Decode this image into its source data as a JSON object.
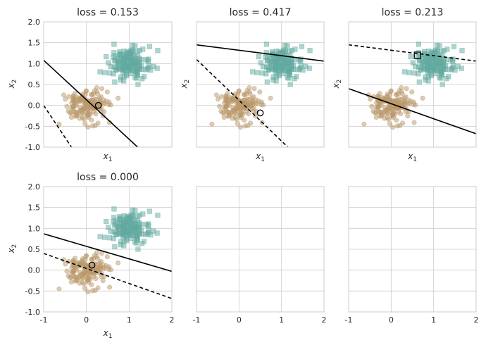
{
  "figure": {
    "layout": "2 rows x 3 columns",
    "colors": {
      "class_0": "#b9986a",
      "class_1": "#62aaa0",
      "boundary": "#000000",
      "grid": "#cccccc"
    }
  },
  "chart_data": [
    {
      "type": "scatter",
      "title": "loss = 0.153",
      "xlabel": "x1",
      "ylabel": "x2",
      "xlim": [
        -1,
        2
      ],
      "ylim": [
        -1,
        2
      ],
      "xticks": [
        "-1",
        "0",
        "1",
        "2"
      ],
      "yticks": [
        "-1.0",
        "-0.5",
        "0.0",
        "0.5",
        "1.0",
        "1.5",
        "2.0"
      ],
      "show_xtick_labels": false,
      "show_ytick_labels": true,
      "grid": true,
      "series": [
        {
          "marker": "circle",
          "color": "#b9986a",
          "cluster_center": [
            0.0,
            0.0
          ],
          "cluster_spread": [
            0.25,
            0.2
          ],
          "count": 150
        },
        {
          "marker": "square",
          "color": "#62aaa0",
          "cluster_center": [
            1.0,
            1.0
          ],
          "cluster_spread": [
            0.25,
            0.22
          ],
          "count": 150
        }
      ],
      "lines": [
        {
          "style": "solid",
          "points": [
            [
              -1,
              1.08
            ],
            [
              1.2,
              -1.0
            ]
          ]
        },
        {
          "style": "dashed",
          "points": [
            [
              -1,
              0.0
            ],
            [
              -0.35,
              -1.0
            ]
          ]
        }
      ],
      "highlight": {
        "marker": "circle",
        "x": 0.28,
        "y": 0.0
      }
    },
    {
      "type": "scatter",
      "title": "loss = 0.417",
      "xlabel": "x1",
      "ylabel": "x2",
      "xlim": [
        -1,
        2
      ],
      "ylim": [
        -1,
        2
      ],
      "xticks": [
        "-1",
        "0",
        "1",
        "2"
      ],
      "yticks": [
        "-1.0",
        "-0.5",
        "0.0",
        "0.5",
        "1.0",
        "1.5",
        "2.0"
      ],
      "show_xtick_labels": false,
      "show_ytick_labels": false,
      "grid": true,
      "series": [
        {
          "marker": "circle",
          "color": "#b9986a",
          "cluster_center": [
            0.0,
            0.0
          ],
          "cluster_spread": [
            0.25,
            0.2
          ],
          "count": 150
        },
        {
          "marker": "square",
          "color": "#62aaa0",
          "cluster_center": [
            1.0,
            1.0
          ],
          "cluster_spread": [
            0.25,
            0.22
          ],
          "count": 150
        }
      ],
      "lines": [
        {
          "style": "solid",
          "points": [
            [
              -1,
              1.45
            ],
            [
              2,
              1.06
            ]
          ]
        },
        {
          "style": "dashed",
          "points": [
            [
              -1,
              1.1
            ],
            [
              1.15,
              -1.0
            ]
          ]
        }
      ],
      "highlight": {
        "marker": "circle",
        "x": 0.5,
        "y": -0.18
      }
    },
    {
      "type": "scatter",
      "title": "loss = 0.213",
      "xlabel": "x1",
      "ylabel": "x2",
      "xlim": [
        -1,
        2
      ],
      "ylim": [
        -1,
        2
      ],
      "xticks": [
        "-1",
        "0",
        "1",
        "2"
      ],
      "yticks": [
        "-1.0",
        "-0.5",
        "0.0",
        "0.5",
        "1.0",
        "1.5",
        "2.0"
      ],
      "show_xtick_labels": false,
      "show_ytick_labels": false,
      "grid": true,
      "series": [
        {
          "marker": "circle",
          "color": "#b9986a",
          "cluster_center": [
            0.0,
            0.0
          ],
          "cluster_spread": [
            0.25,
            0.2
          ],
          "count": 150
        },
        {
          "marker": "square",
          "color": "#62aaa0",
          "cluster_center": [
            1.0,
            1.0
          ],
          "cluster_spread": [
            0.25,
            0.22
          ],
          "count": 150
        }
      ],
      "lines": [
        {
          "style": "solid",
          "points": [
            [
              -1,
              0.4
            ],
            [
              2,
              -0.68
            ]
          ]
        },
        {
          "style": "dashed",
          "points": [
            [
              -1,
              1.45
            ],
            [
              2,
              1.06
            ]
          ]
        }
      ],
      "highlight": {
        "marker": "square",
        "x": 0.62,
        "y": 1.2
      }
    },
    {
      "type": "scatter",
      "title": "loss = 0.000",
      "xlabel": "x1",
      "ylabel": "x2",
      "xlim": [
        -1,
        2
      ],
      "ylim": [
        -1,
        2
      ],
      "xticks": [
        "-1",
        "0",
        "1",
        "2"
      ],
      "yticks": [
        "-1.0",
        "-0.5",
        "0.0",
        "0.5",
        "1.0",
        "1.5",
        "2.0"
      ],
      "show_xtick_labels": true,
      "show_ytick_labels": true,
      "grid": true,
      "series": [
        {
          "marker": "circle",
          "color": "#b9986a",
          "cluster_center": [
            0.0,
            0.0
          ],
          "cluster_spread": [
            0.25,
            0.2
          ],
          "count": 150
        },
        {
          "marker": "square",
          "color": "#62aaa0",
          "cluster_center": [
            1.0,
            1.0
          ],
          "cluster_spread": [
            0.25,
            0.22
          ],
          "count": 150
        }
      ],
      "lines": [
        {
          "style": "solid",
          "points": [
            [
              -1,
              0.87
            ],
            [
              2,
              -0.03
            ]
          ]
        },
        {
          "style": "dashed",
          "points": [
            [
              -1,
              0.4
            ],
            [
              2,
              -0.68
            ]
          ]
        }
      ],
      "highlight": {
        "marker": "circle",
        "x": 0.13,
        "y": 0.12
      }
    },
    {
      "type": "scatter",
      "title": "",
      "xlabel": "",
      "ylabel": "",
      "xlim": [
        -1,
        2
      ],
      "ylim": [
        -1,
        2
      ],
      "xticks": [
        "-1",
        "0",
        "1",
        "2"
      ],
      "yticks": [
        "-1.0",
        "-0.5",
        "0.0",
        "0.5",
        "1.0",
        "1.5",
        "2.0"
      ],
      "show_xtick_labels": true,
      "show_ytick_labels": false,
      "grid": true,
      "series": [],
      "lines": [],
      "highlight": null
    },
    {
      "type": "scatter",
      "title": "",
      "xlabel": "",
      "ylabel": "",
      "xlim": [
        -1,
        2
      ],
      "ylim": [
        -1,
        2
      ],
      "xticks": [
        "-1",
        "0",
        "1",
        "2"
      ],
      "yticks": [
        "-1.0",
        "-0.5",
        "0.0",
        "0.5",
        "1.0",
        "1.5",
        "2.0"
      ],
      "show_xtick_labels": true,
      "show_ytick_labels": false,
      "grid": true,
      "series": [],
      "lines": [],
      "highlight": null
    }
  ]
}
